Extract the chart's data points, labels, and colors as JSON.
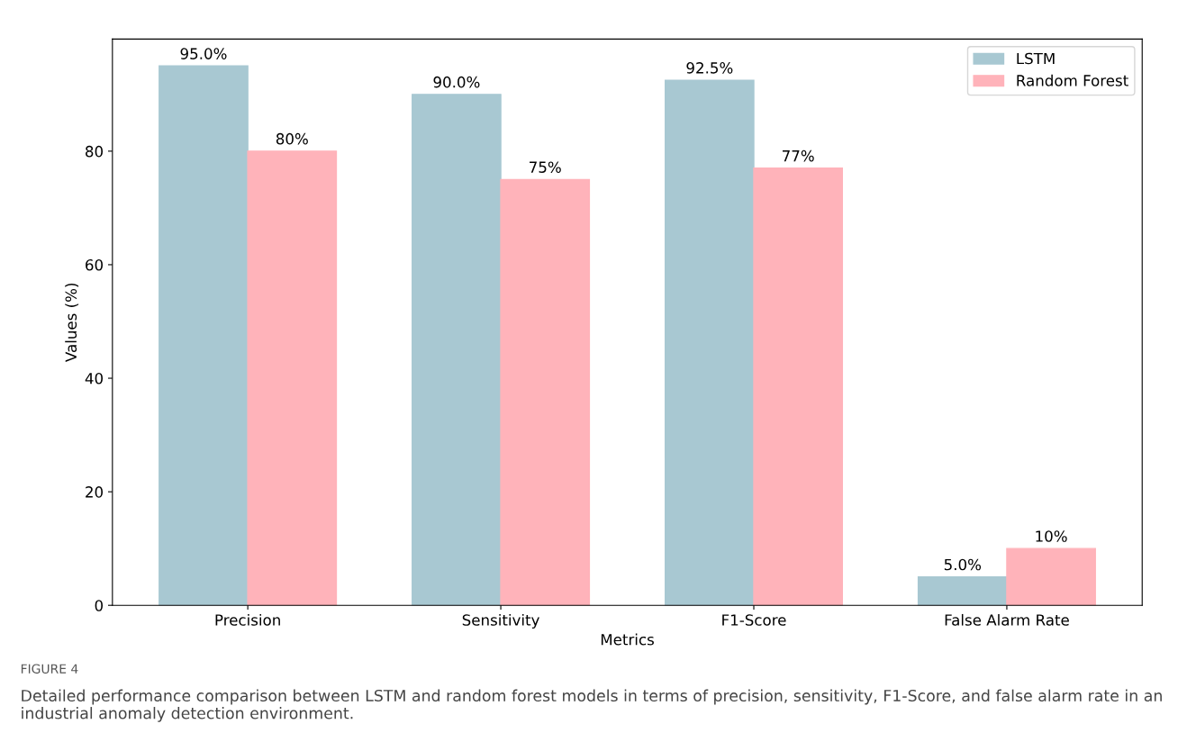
{
  "chart_data": {
    "type": "bar",
    "xlabel": "Metrics",
    "ylabel": "Values (%)",
    "categories": [
      "Precision",
      "Sensitivity",
      "F1-Score",
      "False Alarm Rate"
    ],
    "series": [
      {
        "name": "LSTM",
        "color": "#a8c8d2",
        "values": [
          95.0,
          90.0,
          92.5,
          5.0
        ],
        "value_labels": [
          "95.0%",
          "90.0%",
          "92.5%",
          "5.0%"
        ]
      },
      {
        "name": "Random Forest",
        "color": "#ffb3ba",
        "values": [
          80,
          75,
          77,
          10
        ],
        "value_labels": [
          "80%",
          "75%",
          "77%",
          "10%"
        ]
      }
    ],
    "ylim": [
      0,
      99.75
    ],
    "yticks": [
      0,
      20,
      40,
      60,
      80
    ],
    "grid": false,
    "legend": "top right",
    "annotations": [
      "FIGURE 4",
      "Detailed performance comparison between LSTM and random forest models in terms of precision, sensitivity, F1-Score, and false alarm rate in an industrial anomaly detection environment."
    ]
  }
}
